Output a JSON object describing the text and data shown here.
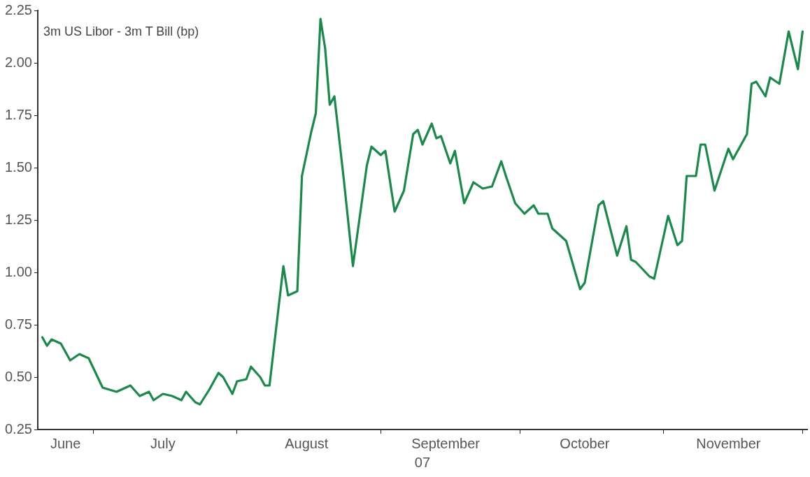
{
  "chart_data": {
    "type": "line",
    "title": "3m US Libor - 3m T Bill (bp)",
    "xlabel": "07",
    "x": [
      "--06-20",
      "--06-21",
      "--06-22",
      "--06-24",
      "--06-26",
      "--06-28",
      "--06-30",
      "--07-03",
      "--07-06",
      "--07-09",
      "--07-11",
      "--07-13",
      "--07-14",
      "--07-16",
      "--07-18",
      "--07-20",
      "--07-21",
      "--07-23",
      "--07-24",
      "--07-26",
      "--07-28",
      "--07-29",
      "--07-31",
      "--08-01",
      "--08-03",
      "--08-04",
      "--08-06",
      "--08-07",
      "--08-08",
      "--08-11",
      "--08-12",
      "--08-14",
      "--08-15",
      "--08-17",
      "--08-18",
      "--08-19",
      "--08-20",
      "--08-21",
      "--08-22",
      "--08-24",
      "--08-26",
      "--08-29",
      "--08-30",
      "--09-01",
      "--09-02",
      "--09-04",
      "--09-06",
      "--09-08",
      "--09-09",
      "--09-10",
      "--09-12",
      "--09-13",
      "--09-14",
      "--09-16",
      "--09-17",
      "--09-19",
      "--09-21",
      "--09-23",
      "--09-25",
      "--09-27",
      "--09-28",
      "--09-30",
      "--10-02",
      "--10-04",
      "--10-05",
      "--10-07",
      "--10-08",
      "--10-11",
      "--10-14",
      "--10-15",
      "--10-18",
      "--10-19",
      "--10-22",
      "--10-24",
      "--10-25",
      "--10-26",
      "--10-29",
      "--10-30",
      "--11-02",
      "--11-04",
      "--11-05",
      "--11-06",
      "--11-08",
      "--11-09",
      "--11-10",
      "--11-12",
      "--11-15",
      "--11-16",
      "--11-19",
      "--11-20",
      "--11-21",
      "--11-23",
      "--11-24",
      "--11-26",
      "--11-28",
      "--11-30",
      "--12-01"
    ],
    "series": [
      {
        "color": "#1a8a4a",
        "values": [
          0.69,
          0.65,
          0.68,
          0.66,
          0.58,
          0.61,
          0.59,
          0.45,
          0.43,
          0.46,
          0.41,
          0.43,
          0.39,
          0.42,
          0.41,
          0.39,
          0.43,
          0.38,
          0.37,
          0.44,
          0.52,
          0.5,
          0.42,
          0.48,
          0.49,
          0.55,
          0.5,
          0.46,
          0.46,
          1.03,
          0.89,
          0.91,
          1.46,
          1.67,
          1.76,
          2.21,
          2.07,
          1.8,
          1.84,
          1.45,
          1.03,
          1.51,
          1.6,
          1.56,
          1.58,
          1.29,
          1.39,
          1.66,
          1.68,
          1.61,
          1.71,
          1.64,
          1.65,
          1.52,
          1.58,
          1.33,
          1.43,
          1.4,
          1.41,
          1.53,
          1.46,
          1.33,
          1.28,
          1.32,
          1.28,
          1.28,
          1.21,
          1.15,
          0.92,
          0.95,
          1.32,
          1.34,
          1.08,
          1.22,
          1.06,
          1.05,
          0.98,
          0.97,
          1.27,
          1.13,
          1.15,
          1.46,
          1.46,
          1.61,
          1.61,
          1.39,
          1.59,
          1.54,
          1.66,
          1.9,
          1.91,
          1.84,
          1.93,
          1.9,
          2.15,
          1.97,
          2.15
        ]
      }
    ],
    "xlim": [
      "--06-19",
      "--12-02"
    ],
    "xticks": [
      {
        "value": "--06-25",
        "label": "June"
      },
      {
        "value": "--07-01",
        "label": null
      },
      {
        "value": "--07-16",
        "label": "July"
      },
      {
        "value": "--08-01",
        "label": null
      },
      {
        "value": "--08-16",
        "label": "August"
      },
      {
        "value": "--09-01",
        "label": null
      },
      {
        "value": "--09-15",
        "label": "September"
      },
      {
        "value": "--10-01",
        "label": null
      },
      {
        "value": "--10-15",
        "label": "October"
      },
      {
        "value": "--11-01",
        "label": null
      },
      {
        "value": "--11-15",
        "label": "November"
      },
      {
        "value": "--12-01",
        "label": null
      }
    ],
    "ylim": [
      0.25,
      2.25
    ],
    "yticks": [
      {
        "value": 0.25,
        "label": "0.25"
      },
      {
        "value": 0.5,
        "label": "0.50"
      },
      {
        "value": 0.75,
        "label": "0.75"
      },
      {
        "value": 1,
        "label": "1.00"
      },
      {
        "value": 1.25,
        "label": "1.25"
      },
      {
        "value": 1.5,
        "label": "1.50"
      },
      {
        "value": 1.75,
        "label": "1.75"
      },
      {
        "value": 2,
        "label": "2.00"
      },
      {
        "value": 2.25,
        "label": "2.25"
      }
    ]
  }
}
